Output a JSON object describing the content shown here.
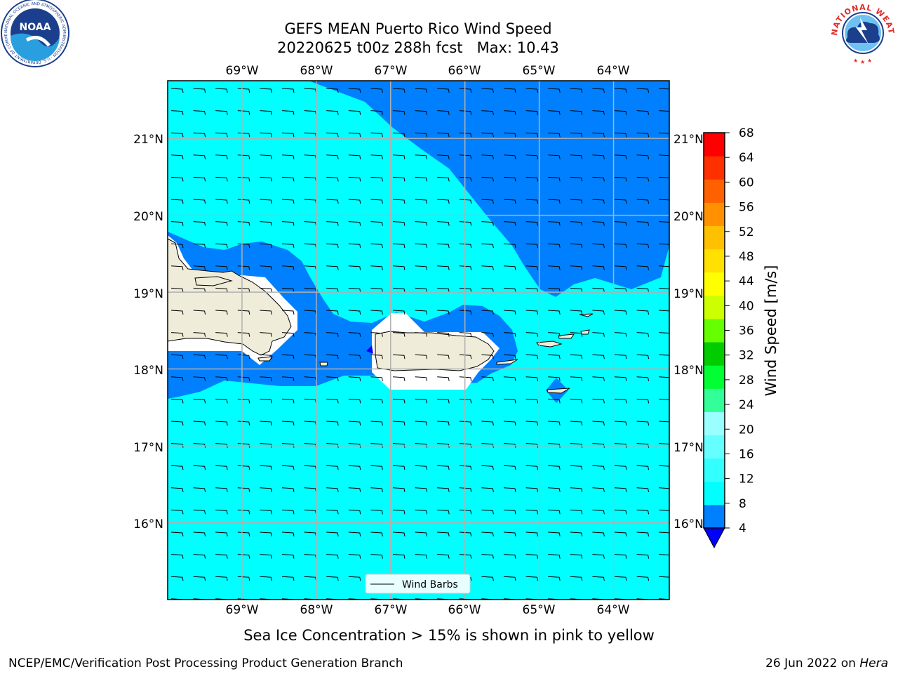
{
  "header": {
    "title_line1": "GEFS MEAN Puerto Rico Wind Speed",
    "title_line2": "20220625 t00z 288h fcst   Max: 10.43"
  },
  "logos": {
    "left": {
      "name": "noaa-logo",
      "text": "NOAA",
      "ring_text": "NATIONAL OCEANIC AND ATMOSPHERIC ADMINISTRATION · U.S. DEPARTMENT OF COMMERCE"
    },
    "right": {
      "name": "nws-logo",
      "ring_text": "NATIONAL WEATHER SERVICE"
    }
  },
  "map": {
    "lon_labels": [
      "69°W",
      "68°W",
      "67°W",
      "66°W",
      "65°W",
      "64°W"
    ],
    "lat_labels": [
      "21°N",
      "20°N",
      "19°N",
      "18°N",
      "17°N",
      "16°N"
    ],
    "lon_values": [
      -69,
      -68,
      -67,
      -66,
      -65,
      -64
    ],
    "lat_values": [
      21,
      20,
      19,
      18,
      17,
      16
    ],
    "extent": {
      "lon_min": -70.0,
      "lon_max": -63.25,
      "lat_min": 15.0,
      "lat_max": 21.75
    },
    "legend_label": "Wind Barbs",
    "colors": {
      "ocean_light": "#00ffff",
      "ocean_band": "#0080ff",
      "land": "#efedd9",
      "grid": "#b0b0b0"
    }
  },
  "colorbar": {
    "label": "Wind Speed [m/s]",
    "ticks": [
      "68",
      "64",
      "60",
      "56",
      "52",
      "48",
      "44",
      "40",
      "36",
      "32",
      "28",
      "24",
      "20",
      "16",
      "12",
      "8",
      "4"
    ],
    "colors": [
      "#0080ff",
      "#00ffff",
      "#33ffff",
      "#66ffff",
      "#99ffff",
      "#33ff99",
      "#00ff33",
      "#00cc00",
      "#66ff00",
      "#ccff00",
      "#ffff00",
      "#ffe000",
      "#ffc000",
      "#ff9000",
      "#ff6000",
      "#ff3000",
      "#ff0000"
    ],
    "extend_color": "#0000ff"
  },
  "footer": {
    "note": "Sea Ice Concentration > 15% is shown in pink to yellow",
    "credit": "NCEP/EMC/Verification Post Processing Product Generation Branch",
    "date": "26 Jun 2022 on ",
    "host": "Hera"
  }
}
